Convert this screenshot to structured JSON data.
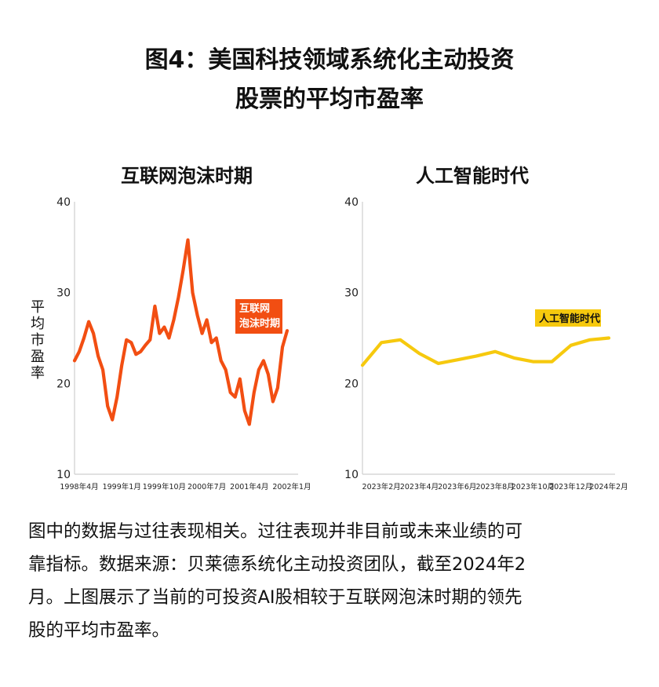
{
  "title_lines": [
    "图4：美国科技领域系统化主动投资",
    "股票的平均市盈率"
  ],
  "caption_lines": [
    "图中的数据与过往表现相关。过往表现并非目前或未来业绩的可",
    "靠指标。数据来源：贝莱德系统化主动投资团队，截至2024年2",
    "月。上图展示了当前的可投资AI股相较于互联网泡沫时期的领先",
    "股的平均市盈率。"
  ],
  "colors": {
    "dotcom": "#F24E12",
    "ai": "#F6C90E"
  },
  "chart_data": [
    {
      "type": "line",
      "title": "互联网泡沫时期",
      "ylabel": "平均市盈率",
      "ylim": [
        10,
        40
      ],
      "yticks": [
        10,
        20,
        30,
        40
      ],
      "xlim": [
        "1998-03",
        "2002-01"
      ],
      "xticks": [
        "1998年4月",
        "1999年1月",
        "1999年10月",
        "2000年7月",
        "2001年4月",
        "2002年1月"
      ],
      "xtick_dates": [
        "1998-04",
        "1999-01",
        "1999-10",
        "2000-07",
        "2001-04",
        "2002-01"
      ],
      "grid": false,
      "annotation": {
        "text": [
          "互联网",
          "泡沫时期"
        ],
        "color": "#F24E12"
      },
      "series": [
        {
          "color": "#F24E12",
          "x": [
            "1998-03",
            "1998-04",
            "1998-05",
            "1998-06",
            "1998-07",
            "1998-08",
            "1998-09",
            "1998-10",
            "1998-11",
            "1998-12",
            "1999-01",
            "1999-02",
            "1999-03",
            "1999-04",
            "1999-05",
            "1999-06",
            "1999-07",
            "1999-08",
            "1999-09",
            "1999-10",
            "1999-11",
            "1999-12",
            "2000-01",
            "2000-02",
            "2000-03",
            "2000-04",
            "2000-05",
            "2000-06",
            "2000-07",
            "2000-08",
            "2000-09",
            "2000-10",
            "2000-11",
            "2000-12",
            "2001-01",
            "2001-02",
            "2001-03",
            "2001-04",
            "2001-05",
            "2001-06",
            "2001-07",
            "2001-08",
            "2001-09",
            "2001-10",
            "2001-11",
            "2001-12"
          ],
          "values": [
            22.5,
            23.5,
            25.0,
            26.8,
            25.5,
            23.0,
            21.5,
            17.5,
            16.0,
            18.5,
            22.0,
            24.8,
            24.5,
            23.2,
            23.5,
            24.2,
            24.8,
            28.5,
            25.5,
            26.2,
            25.0,
            27.0,
            29.5,
            32.5,
            35.8,
            30.0,
            27.5,
            25.5,
            27.0,
            24.5,
            25.0,
            22.5,
            21.5,
            19.0,
            18.5,
            20.5,
            17.0,
            15.5,
            19.0,
            21.5,
            22.5,
            21.0,
            18.0,
            19.5,
            24.0,
            25.8
          ]
        }
      ]
    },
    {
      "type": "line",
      "title": "人工智能时代",
      "ylabel": "平均市盈率",
      "ylim": [
        10,
        40
      ],
      "yticks": [
        10,
        20,
        30,
        40
      ],
      "xlim": [
        "2023-01",
        "2024-02"
      ],
      "xticks": [
        "2023年2月",
        "2023年4月",
        "2023年6月",
        "2023年8月",
        "2023年10月",
        "2023年12月",
        "2024年2月"
      ],
      "xtick_dates": [
        "2023-02",
        "2023-04",
        "2023-06",
        "2023-08",
        "2023-10",
        "2023-12",
        "2024-02"
      ],
      "grid": false,
      "annotation": {
        "text": [
          "人工智能时代"
        ],
        "color": "#F6C90E"
      },
      "series": [
        {
          "color": "#F6C90E",
          "x": [
            "2023-01",
            "2023-02",
            "2023-03",
            "2023-04",
            "2023-05",
            "2023-06",
            "2023-07",
            "2023-08",
            "2023-09",
            "2023-10",
            "2023-11",
            "2023-12",
            "2024-01",
            "2024-02"
          ],
          "values": [
            22.0,
            24.5,
            24.8,
            23.3,
            22.2,
            22.6,
            23.0,
            23.5,
            22.8,
            22.4,
            22.4,
            24.2,
            24.8,
            25.0
          ]
        }
      ]
    }
  ]
}
